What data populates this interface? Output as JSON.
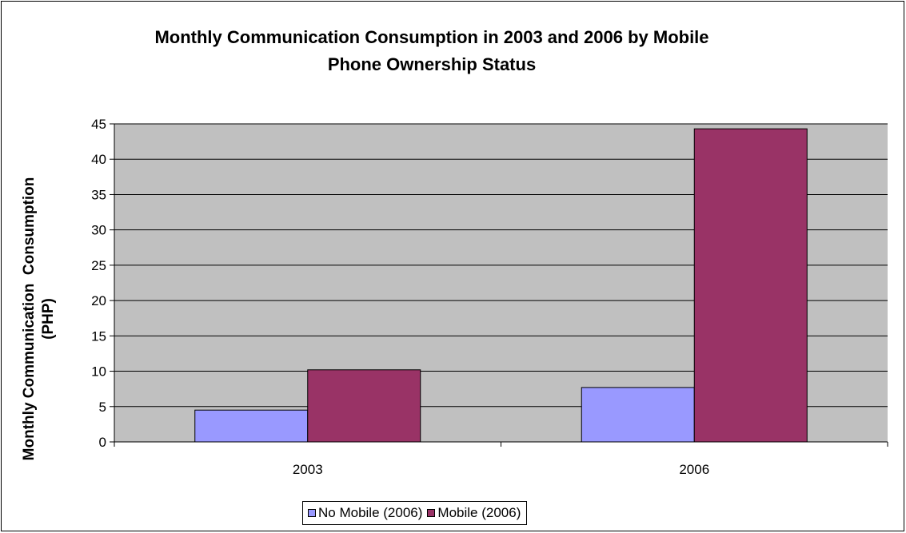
{
  "chart_data": {
    "type": "bar",
    "title": "Monthly Communication Consumption in 2003 and 2006 by Mobile\nPhone Ownership Status",
    "xlabel": "",
    "ylabel": "Monthly Communication  Consumption\n(PHP)",
    "categories": [
      "2003",
      "2006"
    ],
    "series": [
      {
        "name": "No Mobile (2006)",
        "color": "#9999ff",
        "values": [
          4.5,
          7.7
        ]
      },
      {
        "name": "Mobile (2006)",
        "color": "#993366",
        "values": [
          10.2,
          44.3
        ]
      }
    ],
    "ylim": [
      0,
      45
    ],
    "yticks": [
      "0",
      "5",
      "10",
      "15",
      "20",
      "25",
      "30",
      "35",
      "40",
      "45"
    ],
    "grid": true,
    "plot_background": "#c0c0c0",
    "legend_position": "bottom"
  }
}
